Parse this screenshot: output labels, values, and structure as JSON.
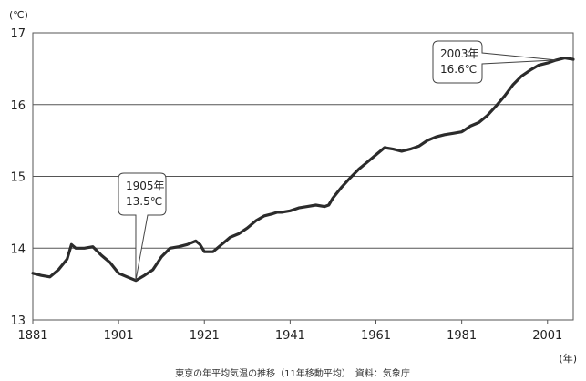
{
  "chart_data": {
    "type": "line",
    "caption": "東京の年平均気温の推移（11年移動平均）　資料：気象庁",
    "y_unit": "(℃)",
    "x_unit": "(年)",
    "xlim": [
      1881,
      2007
    ],
    "ylim": [
      13,
      17
    ],
    "x_ticks": [
      1881,
      1901,
      1921,
      1941,
      1961,
      1981,
      2001
    ],
    "y_ticks": [
      13,
      14,
      15,
      16,
      17
    ],
    "grid": "horizontal",
    "legend": "none",
    "line_color": "#2b2b2b",
    "series": [
      {
        "x": [
          1881,
          1883,
          1885,
          1887,
          1889,
          1890,
          1891,
          1893,
          1895,
          1897,
          1899,
          1901,
          1903,
          1905,
          1907,
          1909,
          1911,
          1913,
          1915,
          1917,
          1919,
          1920,
          1921,
          1923,
          1925,
          1926,
          1927,
          1929,
          1931,
          1933,
          1935,
          1937,
          1938,
          1939,
          1941,
          1943,
          1945,
          1947,
          1949,
          1950,
          1951,
          1953,
          1955,
          1957,
          1959,
          1961,
          1963,
          1965,
          1967,
          1969,
          1971,
          1973,
          1975,
          1977,
          1979,
          1981,
          1983,
          1985,
          1987,
          1989,
          1991,
          1993,
          1995,
          1997,
          1999,
          2001,
          2003,
          2005,
          2007
        ],
        "values": [
          13.65,
          13.62,
          13.6,
          13.7,
          13.85,
          14.05,
          14.0,
          14.0,
          14.02,
          13.9,
          13.8,
          13.65,
          13.6,
          13.55,
          13.62,
          13.7,
          13.88,
          14.0,
          14.02,
          14.05,
          14.1,
          14.05,
          13.95,
          13.95,
          14.05,
          14.1,
          14.15,
          14.2,
          14.28,
          14.38,
          14.45,
          14.48,
          14.5,
          14.5,
          14.52,
          14.56,
          14.58,
          14.6,
          14.58,
          14.6,
          14.7,
          14.85,
          14.98,
          15.1,
          15.2,
          15.3,
          15.4,
          15.38,
          15.35,
          15.38,
          15.42,
          15.5,
          15.55,
          15.58,
          15.6,
          15.62,
          15.7,
          15.75,
          15.85,
          15.98,
          16.12,
          16.28,
          16.4,
          16.48,
          16.55,
          16.58,
          16.62,
          16.65,
          16.63
        ]
      }
    ],
    "annotations": [
      {
        "x": 1905,
        "y": 13.55,
        "line1": "1905年",
        "line2": "13.5℃"
      },
      {
        "x": 2003,
        "y": 16.62,
        "line1": "2003年",
        "line2": "16.6℃"
      }
    ]
  }
}
